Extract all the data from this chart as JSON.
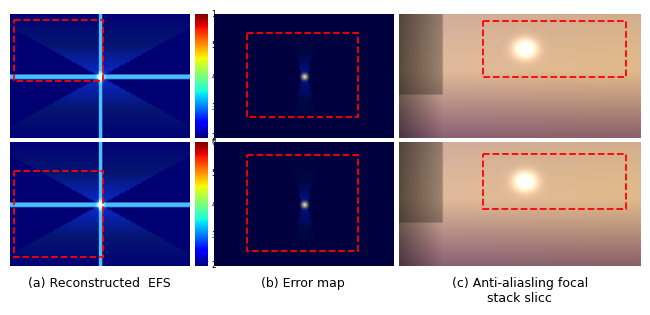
{
  "figure_title": "",
  "captions": [
    "(a) Reconstructed  EFS",
    "(b) Error map",
    "(c) Anti-aliasling focal\nstack slicc"
  ],
  "colorbar_ticks_top": [
    "1",
    "5",
    "4",
    "3",
    "2"
  ],
  "colorbar_ticks_bottom": [
    "6",
    "5",
    "4",
    "3",
    "2"
  ],
  "bg_color": "#ffffff",
  "caption_fontsize": 9,
  "fig_width": 6.4,
  "fig_height": 2.95
}
